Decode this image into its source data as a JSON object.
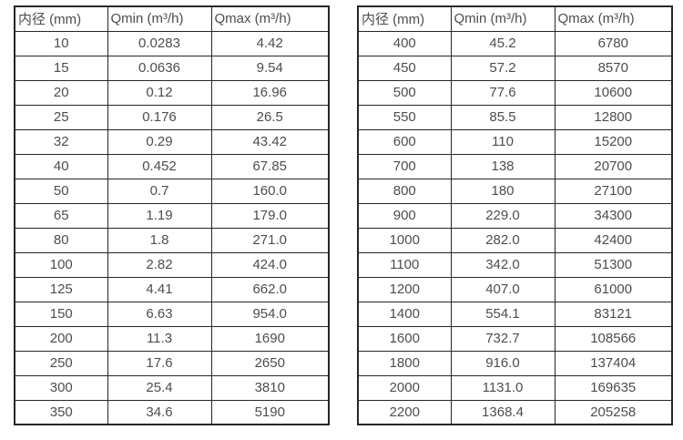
{
  "colors": {
    "background": "#ffffff",
    "border": "#262626",
    "text": "#4d4d4d"
  },
  "chart_data": [
    {
      "type": "table",
      "title": "",
      "columns": [
        "内径 (mm)",
        "Qmin (m³/h)",
        "Qmax (m³/h)"
      ],
      "rows": [
        [
          "10",
          "0.0283",
          "4.42"
        ],
        [
          "15",
          "0.0636",
          "9.54"
        ],
        [
          "20",
          "0.12",
          "16.96"
        ],
        [
          "25",
          "0.176",
          "26.5"
        ],
        [
          "32",
          "0.29",
          "43.42"
        ],
        [
          "40",
          "0.452",
          "67.85"
        ],
        [
          "50",
          "0.7",
          "160.0"
        ],
        [
          "65",
          "1.19",
          "179.0"
        ],
        [
          "80",
          "1.8",
          "271.0"
        ],
        [
          "100",
          "2.82",
          "424.0"
        ],
        [
          "125",
          "4.41",
          "662.0"
        ],
        [
          "150",
          "6.63",
          "954.0"
        ],
        [
          "200",
          "11.3",
          "1690"
        ],
        [
          "250",
          "17.6",
          "2650"
        ],
        [
          "300",
          "25.4",
          "3810"
        ],
        [
          "350",
          "34.6",
          "5190"
        ]
      ]
    },
    {
      "type": "table",
      "title": "",
      "columns": [
        "内径 (mm)",
        "Qmin (m³/h)",
        "Qmax (m³/h)"
      ],
      "rows": [
        [
          "400",
          "45.2",
          "6780"
        ],
        [
          "450",
          "57.2",
          "8570"
        ],
        [
          "500",
          "77.6",
          "10600"
        ],
        [
          "550",
          "85.5",
          "12800"
        ],
        [
          "600",
          "110",
          "15200"
        ],
        [
          "700",
          "138",
          "20700"
        ],
        [
          "800",
          "180",
          "27100"
        ],
        [
          "900",
          "229.0",
          "34300"
        ],
        [
          "1000",
          "282.0",
          "42400"
        ],
        [
          "1100",
          "342.0",
          "51300"
        ],
        [
          "1200",
          "407.0",
          "61000"
        ],
        [
          "1400",
          "554.1",
          "83121"
        ],
        [
          "1600",
          "732.7",
          "108566"
        ],
        [
          "1800",
          "916.0",
          "137404"
        ],
        [
          "2000",
          "1131.0",
          "169635"
        ],
        [
          "2200",
          "1368.4",
          "205258"
        ]
      ]
    }
  ]
}
